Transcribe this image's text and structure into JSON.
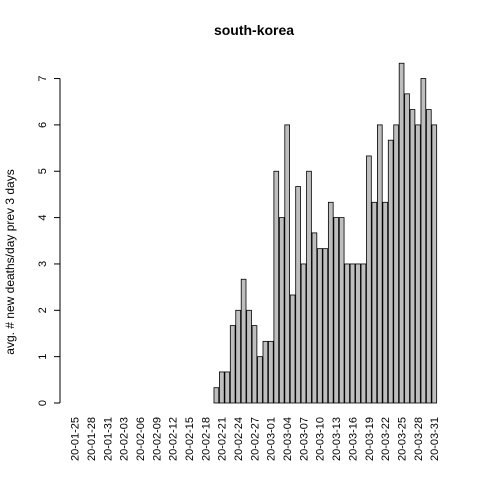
{
  "chart_data": {
    "type": "bar",
    "title": "south-korea",
    "xlabel": "",
    "ylabel": "avg. # new deaths/day prev  3  days",
    "ylim": [
      0,
      7.4
    ],
    "y_ticks": [
      0,
      1,
      2,
      3,
      4,
      5,
      6,
      7
    ],
    "grid": false,
    "legend": "none",
    "bar_color": "#bebebe",
    "bar_edge_color": "#000000",
    "categories": [
      "20-01-25",
      "20-01-26",
      "20-01-27",
      "20-01-28",
      "20-01-29",
      "20-01-30",
      "20-01-31",
      "20-02-01",
      "20-02-02",
      "20-02-03",
      "20-02-04",
      "20-02-05",
      "20-02-06",
      "20-02-07",
      "20-02-08",
      "20-02-09",
      "20-02-10",
      "20-02-11",
      "20-02-12",
      "20-02-13",
      "20-02-14",
      "20-02-15",
      "20-02-16",
      "20-02-17",
      "20-02-18",
      "20-02-19",
      "20-02-20",
      "20-02-21",
      "20-02-22",
      "20-02-23",
      "20-02-24",
      "20-02-25",
      "20-02-26",
      "20-02-27",
      "20-02-28",
      "20-02-29",
      "20-03-01",
      "20-03-02",
      "20-03-03",
      "20-03-04",
      "20-03-05",
      "20-03-06",
      "20-03-07",
      "20-03-08",
      "20-03-09",
      "20-03-10",
      "20-03-11",
      "20-03-12",
      "20-03-13",
      "20-03-14",
      "20-03-15",
      "20-03-16",
      "20-03-17",
      "20-03-18",
      "20-03-19",
      "20-03-20",
      "20-03-21",
      "20-03-22",
      "20-03-23",
      "20-03-24",
      "20-03-25",
      "20-03-26",
      "20-03-27",
      "20-03-28",
      "20-03-29",
      "20-03-30",
      "20-03-31"
    ],
    "tick_label_every": 3,
    "values": [
      0,
      0,
      0,
      0,
      0,
      0,
      0,
      0,
      0,
      0,
      0,
      0,
      0,
      0,
      0,
      0,
      0,
      0,
      0,
      0,
      0,
      0,
      0,
      0,
      0,
      0,
      0.33,
      0.67,
      0.67,
      1.67,
      2,
      2.67,
      2,
      1.67,
      1,
      1.33,
      1.33,
      5,
      4,
      6,
      2.33,
      4.67,
      3,
      5,
      3.67,
      3.33,
      3.33,
      4.33,
      4,
      4,
      3,
      3,
      3,
      3,
      5.33,
      4.33,
      6,
      4.33,
      5.67,
      6,
      7.33,
      6.67,
      6.33,
      6,
      7,
      6.33,
      6
    ]
  }
}
